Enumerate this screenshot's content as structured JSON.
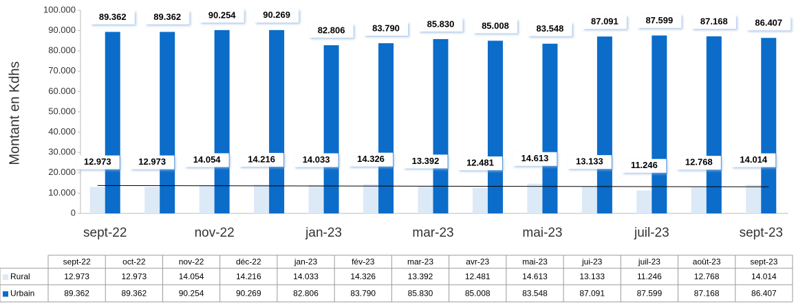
{
  "chart_data": {
    "type": "bar",
    "y_label": "Montant en Kdhs",
    "categories": [
      "sept-22",
      "oct-22",
      "nov-22",
      "déc-22",
      "jan-23",
      "fév-23",
      "mar-23",
      "avr-23",
      "mai-23",
      "jui-23",
      "juil-23",
      "août-23",
      "sept-23"
    ],
    "series": [
      {
        "name": "Rural",
        "color": "#dce9f7",
        "trendline": true,
        "values": [
          12973,
          12973,
          14054,
          14216,
          14033,
          14326,
          13392,
          12481,
          14613,
          13133,
          11246,
          12768,
          14014
        ],
        "value_labels": [
          "12.973",
          "12.973",
          "14.054",
          "14.216",
          "14.033",
          "14.326",
          "13.392",
          "12.481",
          "14.613",
          "13.133",
          "11.246",
          "12.768",
          "14.014"
        ]
      },
      {
        "name": "Urbain",
        "color": "#0b6cc9",
        "values": [
          89362,
          89362,
          90254,
          90269,
          82806,
          83790,
          85830,
          85008,
          83548,
          87091,
          87599,
          87168,
          86407
        ],
        "value_labels": [
          "89.362",
          "89.362",
          "90.254",
          "90.269",
          "82.806",
          "83.790",
          "85.830",
          "85.008",
          "83.548",
          "87.091",
          "87.599",
          "87.168",
          "86.407"
        ]
      }
    ],
    "ylim": [
      0,
      100000
    ],
    "yticks": [
      0,
      {
        "value": 10000,
        "label": "10.000"
      },
      {
        "value": 20000,
        "label": "20.000"
      },
      {
        "value": 30000,
        "label": "30.000"
      },
      {
        "value": 40000,
        "label": "40.000"
      },
      {
        "value": 50000,
        "label": "50.000"
      },
      {
        "value": 60000,
        "label": "60.000"
      },
      {
        "value": 70000,
        "label": "70.000"
      },
      {
        "value": 80000,
        "label": "80.000"
      },
      {
        "value": 90000,
        "label": "90.000"
      },
      {
        "value": 100000,
        "label": "100.000"
      }
    ],
    "x_label_every": 2,
    "data_table": true
  }
}
